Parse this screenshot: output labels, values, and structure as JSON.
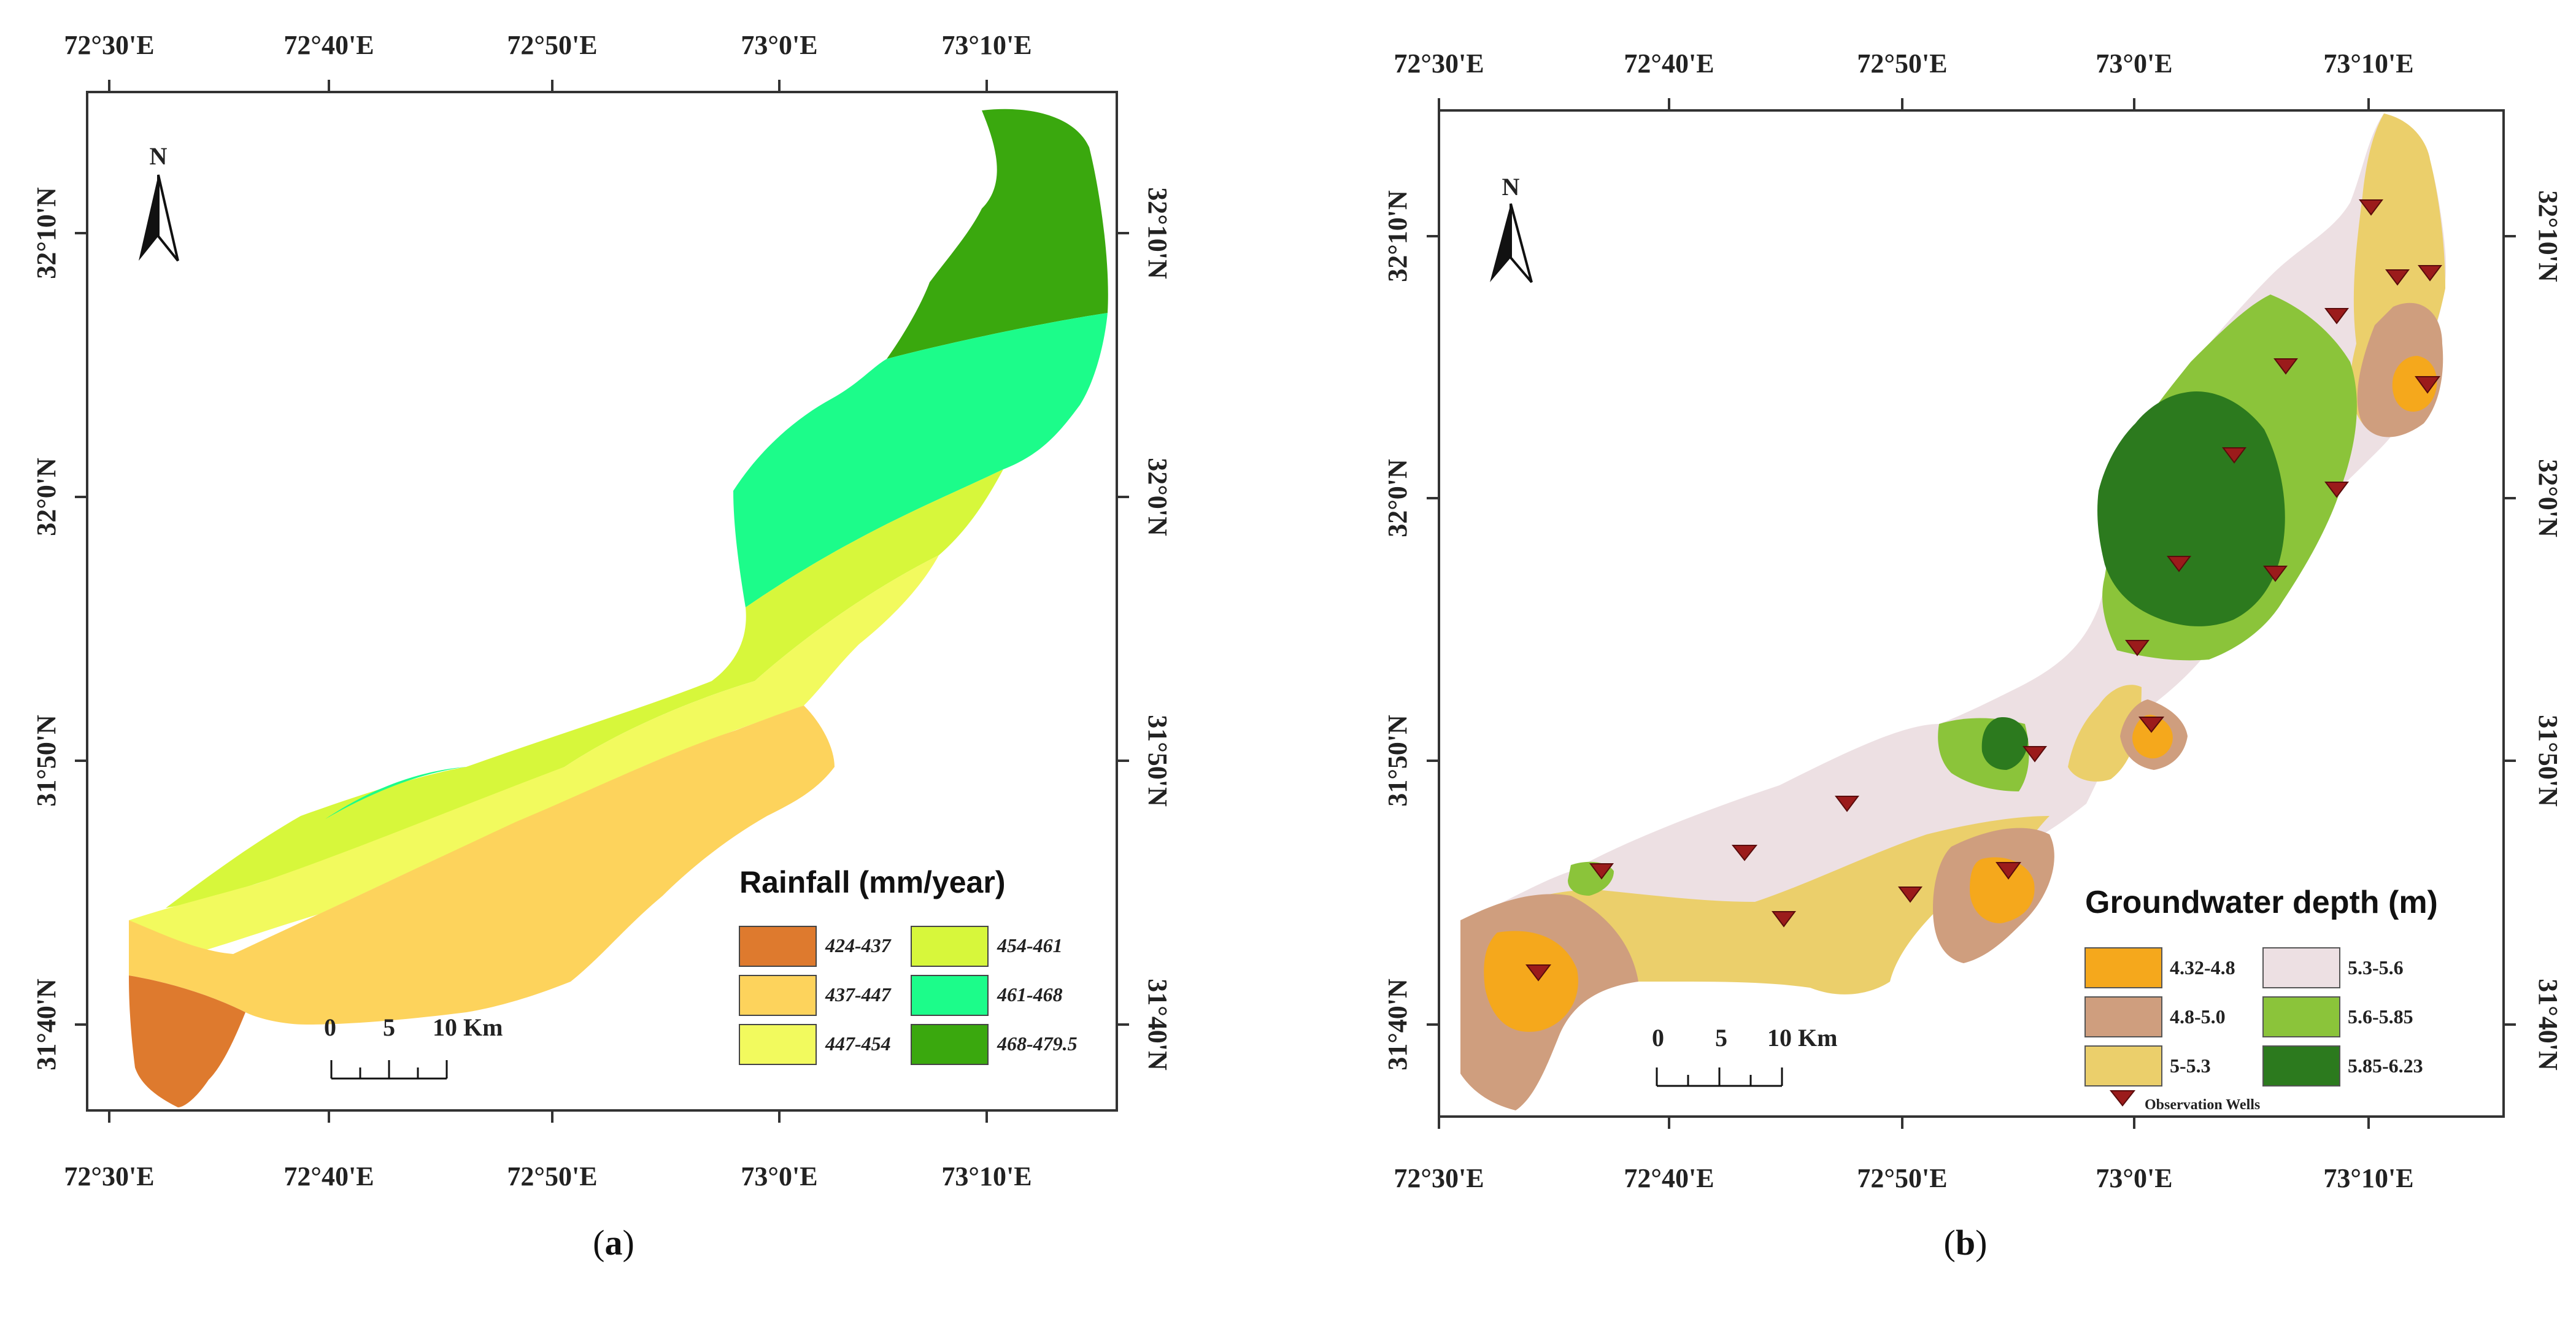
{
  "panel_a": {
    "caption_label": "a",
    "top_x_labels": [
      "72°30'E",
      "72°40'E",
      "72°50'E",
      "73°0'E",
      "73°10'E"
    ],
    "bottom_x_labels": [
      "72°30'E",
      "72°40'E",
      "72°50'E",
      "73°0'E",
      "73°10'E"
    ],
    "left_y_labels": [
      "32°10'N",
      "32°0'N",
      "31°50'N",
      "31°40'N"
    ],
    "right_y_labels": [
      "32°10'N",
      "32°0'N",
      "31°50'N",
      "31°40'N"
    ],
    "north_label": "N",
    "scale": {
      "ticks": [
        "0",
        "5",
        "10 Km"
      ]
    },
    "legend": {
      "title": "Rainfall (mm/year)",
      "items": [
        {
          "label": "424-437",
          "color": "#de7a2e"
        },
        {
          "label": "437-447",
          "color": "#fdd35c"
        },
        {
          "label": "447-454",
          "color": "#f2fa5e"
        },
        {
          "label": "454-461",
          "color": "#d7f73b"
        },
        {
          "label": "461-468",
          "color": "#1cfc8a"
        },
        {
          "label": "468-479.5",
          "color": "#3aa80e"
        }
      ]
    }
  },
  "panel_b": {
    "caption_label": "b",
    "top_x_labels": [
      "72°30'E",
      "72°40'E",
      "72°50'E",
      "73°0'E",
      "73°10'E"
    ],
    "bottom_x_labels": [
      "72°30'E",
      "72°40'E",
      "72°50'E",
      "73°0'E",
      "73°10'E"
    ],
    "left_y_labels": [
      "32°10'N",
      "32°0'N",
      "31°50'N",
      "31°40'N"
    ],
    "right_y_labels": [
      "32°10'N",
      "32°0'N",
      "31°50'N",
      "31°40'N"
    ],
    "north_label": "N",
    "scale": {
      "ticks": [
        "0",
        "5",
        "10 Km"
      ]
    },
    "legend": {
      "title": "Groundwater depth (m)",
      "items": [
        {
          "label": "4.32-4.8",
          "color": "#f5a81c"
        },
        {
          "label": "4.8-5.0",
          "color": "#cf9e7e"
        },
        {
          "label": "5-5.3",
          "color": "#ebcf6b"
        },
        {
          "label": "5.3-5.6",
          "color": "#ede0e3"
        },
        {
          "label": "5.6-5.85",
          "color": "#8bc43a"
        },
        {
          "label": "5.85-6.23",
          "color": "#2c7a1e"
        }
      ],
      "wells_label": "Observation Wells",
      "wells_color": "#9b1b1b"
    }
  }
}
